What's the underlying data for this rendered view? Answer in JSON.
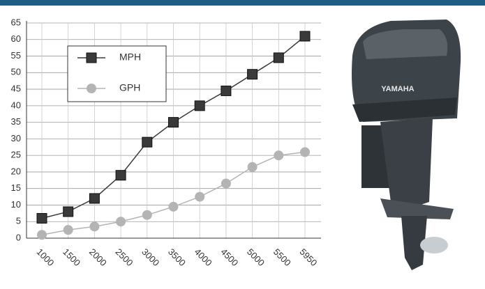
{
  "chart_data": {
    "type": "line",
    "categories": [
      "1000",
      "1500",
      "2000",
      "2500",
      "3000",
      "3500",
      "4000",
      "4500",
      "5000",
      "5500",
      "5950"
    ],
    "series": [
      {
        "name": "MPH",
        "color": "#3a3a3a",
        "marker": "square",
        "values": [
          6,
          8,
          12,
          19,
          29,
          35,
          40,
          44.5,
          49.5,
          54.5,
          61
        ]
      },
      {
        "name": "GPH",
        "color": "#b4b4b4",
        "marker": "circle",
        "values": [
          1,
          2.5,
          3.5,
          5,
          7,
          9.5,
          12.5,
          16.5,
          21.5,
          25,
          26
        ]
      }
    ],
    "ylim": [
      0,
      65
    ],
    "yticks": [
      0,
      5,
      10,
      15,
      20,
      25,
      30,
      35,
      40,
      45,
      50,
      55,
      60,
      65
    ],
    "grid": true,
    "legend": "top-left"
  },
  "image": {
    "brand": "YAMAHA"
  }
}
